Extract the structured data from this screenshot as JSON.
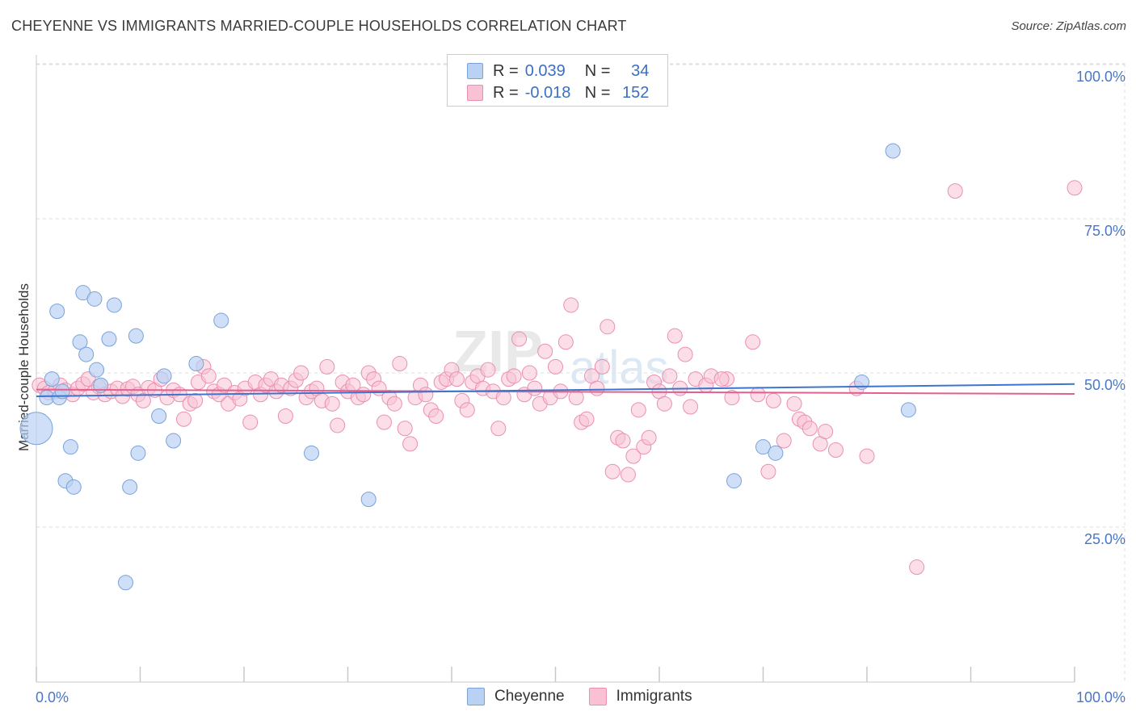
{
  "title": "CHEYENNE VS IMMIGRANTS MARRIED-COUPLE HOUSEHOLDS CORRELATION CHART",
  "source": "Source: ZipAtlas.com",
  "legend": {
    "rows": [
      {
        "r_label": "R =",
        "r_value": "0.039",
        "n_label": "N =",
        "n_value": "34"
      },
      {
        "r_label": "R =",
        "r_value": "-0.018",
        "n_label": "N =",
        "n_value": "152"
      }
    ]
  },
  "colors": {
    "cheyenne_fill": "#b9d2f3",
    "cheyenne_stroke": "#7aa2d8",
    "cheyenne_line": "#3d74cc",
    "immigrants_fill": "#f8c2d4",
    "immigrants_stroke": "#eb8fb0",
    "immigrants_line": "#e2608e",
    "axis_label": "#4a76c7",
    "grid": "#dddddd"
  },
  "chart_data": {
    "type": "scatter",
    "title": "CHEYENNE VS IMMIGRANTS MARRIED-COUPLE HOUSEHOLDS CORRELATION CHART",
    "xlabel": "",
    "ylabel": "Married-couple Households",
    "xlim": [
      0,
      100
    ],
    "ylim": [
      0,
      105
    ],
    "x_tick_labels": [
      "0.0%",
      "100.0%"
    ],
    "y_ticks": [
      25,
      50,
      75,
      100
    ],
    "y_tick_labels": [
      "25.0%",
      "50.0%",
      "75.0%",
      "100.0%"
    ],
    "grid": true,
    "legend_position": "bottom",
    "watermark": "ZIPatlas",
    "series": [
      {
        "name": "Cheyenne",
        "r": 0.039,
        "n": 34,
        "trend": {
          "x": [
            0,
            100
          ],
          "y": [
            46.2,
            48.2
          ]
        },
        "points": [
          {
            "x": 0.0,
            "y": 41.0,
            "big": true
          },
          {
            "x": 1.0,
            "y": 46.0
          },
          {
            "x": 1.5,
            "y": 49.0
          },
          {
            "x": 2.0,
            "y": 60.0
          },
          {
            "x": 2.2,
            "y": 46.0
          },
          {
            "x": 2.8,
            "y": 32.5
          },
          {
            "x": 3.3,
            "y": 38.0
          },
          {
            "x": 3.6,
            "y": 31.5
          },
          {
            "x": 4.2,
            "y": 55.0
          },
          {
            "x": 4.8,
            "y": 53.0
          },
          {
            "x": 4.5,
            "y": 63.0
          },
          {
            "x": 5.6,
            "y": 62.0
          },
          {
            "x": 5.8,
            "y": 50.5
          },
          {
            "x": 6.2,
            "y": 48.0
          },
          {
            "x": 7.0,
            "y": 55.5
          },
          {
            "x": 7.5,
            "y": 61.0
          },
          {
            "x": 8.6,
            "y": 16.0
          },
          {
            "x": 9.0,
            "y": 31.5
          },
          {
            "x": 9.6,
            "y": 56.0
          },
          {
            "x": 9.8,
            "y": 37.0
          },
          {
            "x": 11.8,
            "y": 43.0
          },
          {
            "x": 12.3,
            "y": 49.5
          },
          {
            "x": 13.2,
            "y": 39.0
          },
          {
            "x": 15.4,
            "y": 51.5
          },
          {
            "x": 17.8,
            "y": 58.5
          },
          {
            "x": 26.5,
            "y": 37.0
          },
          {
            "x": 32.0,
            "y": 29.5
          },
          {
            "x": 67.2,
            "y": 32.5
          },
          {
            "x": 70.0,
            "y": 38.0
          },
          {
            "x": 71.2,
            "y": 37.0
          },
          {
            "x": 79.5,
            "y": 48.5
          },
          {
            "x": 82.5,
            "y": 86.0
          },
          {
            "x": 84.0,
            "y": 44.0
          },
          {
            "x": 2.5,
            "y": 47.0
          }
        ]
      },
      {
        "name": "Immigrants",
        "r": -0.018,
        "n": 152,
        "trend": {
          "x": [
            0,
            100
          ],
          "y": [
            47.3,
            46.6
          ]
        },
        "points": [
          {
            "x": 0.3,
            "y": 48.0
          },
          {
            "x": 0.8,
            "y": 47.5
          },
          {
            "x": 1.2,
            "y": 46.8
          },
          {
            "x": 1.8,
            "y": 47.0
          },
          {
            "x": 2.3,
            "y": 48.0
          },
          {
            "x": 2.8,
            "y": 47.2
          },
          {
            "x": 3.5,
            "y": 46.5
          },
          {
            "x": 4.0,
            "y": 47.5
          },
          {
            "x": 4.5,
            "y": 48.2
          },
          {
            "x": 5.0,
            "y": 49.0
          },
          {
            "x": 5.5,
            "y": 46.8
          },
          {
            "x": 6.0,
            "y": 47.8
          },
          {
            "x": 6.6,
            "y": 46.5
          },
          {
            "x": 7.2,
            "y": 47.0
          },
          {
            "x": 7.8,
            "y": 47.5
          },
          {
            "x": 8.3,
            "y": 46.2
          },
          {
            "x": 8.8,
            "y": 47.4
          },
          {
            "x": 9.3,
            "y": 47.8
          },
          {
            "x": 9.8,
            "y": 46.5
          },
          {
            "x": 10.3,
            "y": 45.5
          },
          {
            "x": 10.8,
            "y": 47.6
          },
          {
            "x": 11.4,
            "y": 47.2
          },
          {
            "x": 12.0,
            "y": 49.0
          },
          {
            "x": 12.6,
            "y": 46.0
          },
          {
            "x": 13.2,
            "y": 47.2
          },
          {
            "x": 13.8,
            "y": 46.5
          },
          {
            "x": 14.2,
            "y": 42.5
          },
          {
            "x": 14.8,
            "y": 45.0
          },
          {
            "x": 15.3,
            "y": 45.5
          },
          {
            "x": 15.6,
            "y": 48.5
          },
          {
            "x": 16.1,
            "y": 51.0
          },
          {
            "x": 16.6,
            "y": 49.5
          },
          {
            "x": 17.1,
            "y": 47.0
          },
          {
            "x": 17.6,
            "y": 46.5
          },
          {
            "x": 18.1,
            "y": 48.0
          },
          {
            "x": 18.5,
            "y": 45.0
          },
          {
            "x": 19.1,
            "y": 46.8
          },
          {
            "x": 19.6,
            "y": 45.8
          },
          {
            "x": 20.1,
            "y": 47.5
          },
          {
            "x": 20.6,
            "y": 42.0
          },
          {
            "x": 21.1,
            "y": 48.5
          },
          {
            "x": 21.6,
            "y": 46.5
          },
          {
            "x": 22.1,
            "y": 48.0
          },
          {
            "x": 22.6,
            "y": 49.0
          },
          {
            "x": 23.1,
            "y": 47.0
          },
          {
            "x": 23.6,
            "y": 48.0
          },
          {
            "x": 24.0,
            "y": 43.0
          },
          {
            "x": 24.5,
            "y": 47.5
          },
          {
            "x": 25.0,
            "y": 48.8
          },
          {
            "x": 25.5,
            "y": 50.0
          },
          {
            "x": 26.0,
            "y": 46.0
          },
          {
            "x": 26.5,
            "y": 47.0
          },
          {
            "x": 27.0,
            "y": 47.5
          },
          {
            "x": 27.5,
            "y": 45.5
          },
          {
            "x": 28.0,
            "y": 51.0
          },
          {
            "x": 28.5,
            "y": 45.0
          },
          {
            "x": 29.0,
            "y": 41.5
          },
          {
            "x": 29.5,
            "y": 48.5
          },
          {
            "x": 30.0,
            "y": 47.0
          },
          {
            "x": 30.5,
            "y": 48.0
          },
          {
            "x": 31.0,
            "y": 46.0
          },
          {
            "x": 31.5,
            "y": 46.5
          },
          {
            "x": 32.0,
            "y": 50.0
          },
          {
            "x": 32.5,
            "y": 49.0
          },
          {
            "x": 33.0,
            "y": 47.5
          },
          {
            "x": 33.5,
            "y": 42.0
          },
          {
            "x": 34.0,
            "y": 46.0
          },
          {
            "x": 34.5,
            "y": 45.0
          },
          {
            "x": 35.0,
            "y": 51.5
          },
          {
            "x": 35.5,
            "y": 41.0
          },
          {
            "x": 36.0,
            "y": 38.5
          },
          {
            "x": 36.5,
            "y": 46.0
          },
          {
            "x": 37.0,
            "y": 48.0
          },
          {
            "x": 37.5,
            "y": 46.5
          },
          {
            "x": 38.0,
            "y": 44.0
          },
          {
            "x": 38.5,
            "y": 43.0
          },
          {
            "x": 39.0,
            "y": 48.5
          },
          {
            "x": 39.5,
            "y": 49.0
          },
          {
            "x": 40.0,
            "y": 50.5
          },
          {
            "x": 40.5,
            "y": 49.0
          },
          {
            "x": 41.0,
            "y": 45.5
          },
          {
            "x": 41.5,
            "y": 44.0
          },
          {
            "x": 42.0,
            "y": 48.5
          },
          {
            "x": 42.5,
            "y": 49.5
          },
          {
            "x": 43.0,
            "y": 47.5
          },
          {
            "x": 43.5,
            "y": 50.5
          },
          {
            "x": 44.0,
            "y": 47.0
          },
          {
            "x": 44.5,
            "y": 41.0
          },
          {
            "x": 45.0,
            "y": 46.0
          },
          {
            "x": 45.5,
            "y": 49.0
          },
          {
            "x": 46.0,
            "y": 49.5
          },
          {
            "x": 46.5,
            "y": 55.5
          },
          {
            "x": 47.0,
            "y": 46.5
          },
          {
            "x": 47.5,
            "y": 50.0
          },
          {
            "x": 48.0,
            "y": 47.5
          },
          {
            "x": 48.5,
            "y": 45.0
          },
          {
            "x": 49.0,
            "y": 53.5
          },
          {
            "x": 49.5,
            "y": 46.0
          },
          {
            "x": 50.0,
            "y": 51.0
          },
          {
            "x": 50.5,
            "y": 47.0
          },
          {
            "x": 51.0,
            "y": 55.0
          },
          {
            "x": 51.5,
            "y": 61.0
          },
          {
            "x": 52.0,
            "y": 46.0
          },
          {
            "x": 52.5,
            "y": 42.0
          },
          {
            "x": 53.0,
            "y": 42.5
          },
          {
            "x": 53.5,
            "y": 49.5
          },
          {
            "x": 54.0,
            "y": 47.5
          },
          {
            "x": 54.5,
            "y": 51.0
          },
          {
            "x": 55.0,
            "y": 57.5
          },
          {
            "x": 55.5,
            "y": 34.0
          },
          {
            "x": 56.0,
            "y": 39.5
          },
          {
            "x": 56.5,
            "y": 39.0
          },
          {
            "x": 57.0,
            "y": 33.5
          },
          {
            "x": 57.5,
            "y": 36.5
          },
          {
            "x": 58.0,
            "y": 44.0
          },
          {
            "x": 58.5,
            "y": 38.0
          },
          {
            "x": 59.0,
            "y": 39.5
          },
          {
            "x": 59.5,
            "y": 48.5
          },
          {
            "x": 60.0,
            "y": 47.0
          },
          {
            "x": 60.5,
            "y": 45.0
          },
          {
            "x": 61.0,
            "y": 49.5
          },
          {
            "x": 61.5,
            "y": 56.0
          },
          {
            "x": 62.0,
            "y": 47.5
          },
          {
            "x": 62.5,
            "y": 53.0
          },
          {
            "x": 63.0,
            "y": 44.5
          },
          {
            "x": 63.5,
            "y": 49.0
          },
          {
            "x": 64.5,
            "y": 48.0
          },
          {
            "x": 65.0,
            "y": 49.5
          },
          {
            "x": 66.5,
            "y": 49.0
          },
          {
            "x": 67.0,
            "y": 46.0
          },
          {
            "x": 69.0,
            "y": 55.0
          },
          {
            "x": 69.5,
            "y": 46.5
          },
          {
            "x": 70.5,
            "y": 34.0
          },
          {
            "x": 71.0,
            "y": 45.5
          },
          {
            "x": 72.0,
            "y": 39.0
          },
          {
            "x": 73.0,
            "y": 45.0
          },
          {
            "x": 73.5,
            "y": 42.5
          },
          {
            "x": 74.0,
            "y": 42.0
          },
          {
            "x": 74.5,
            "y": 41.0
          },
          {
            "x": 75.5,
            "y": 38.5
          },
          {
            "x": 76.0,
            "y": 40.5
          },
          {
            "x": 77.0,
            "y": 37.5
          },
          {
            "x": 79.0,
            "y": 47.5
          },
          {
            "x": 80.0,
            "y": 36.5
          },
          {
            "x": 88.5,
            "y": 79.5
          },
          {
            "x": 84.8,
            "y": 18.5
          },
          {
            "x": 100.0,
            "y": 80.0
          },
          {
            "x": 66.0,
            "y": 49.0
          }
        ]
      }
    ]
  }
}
